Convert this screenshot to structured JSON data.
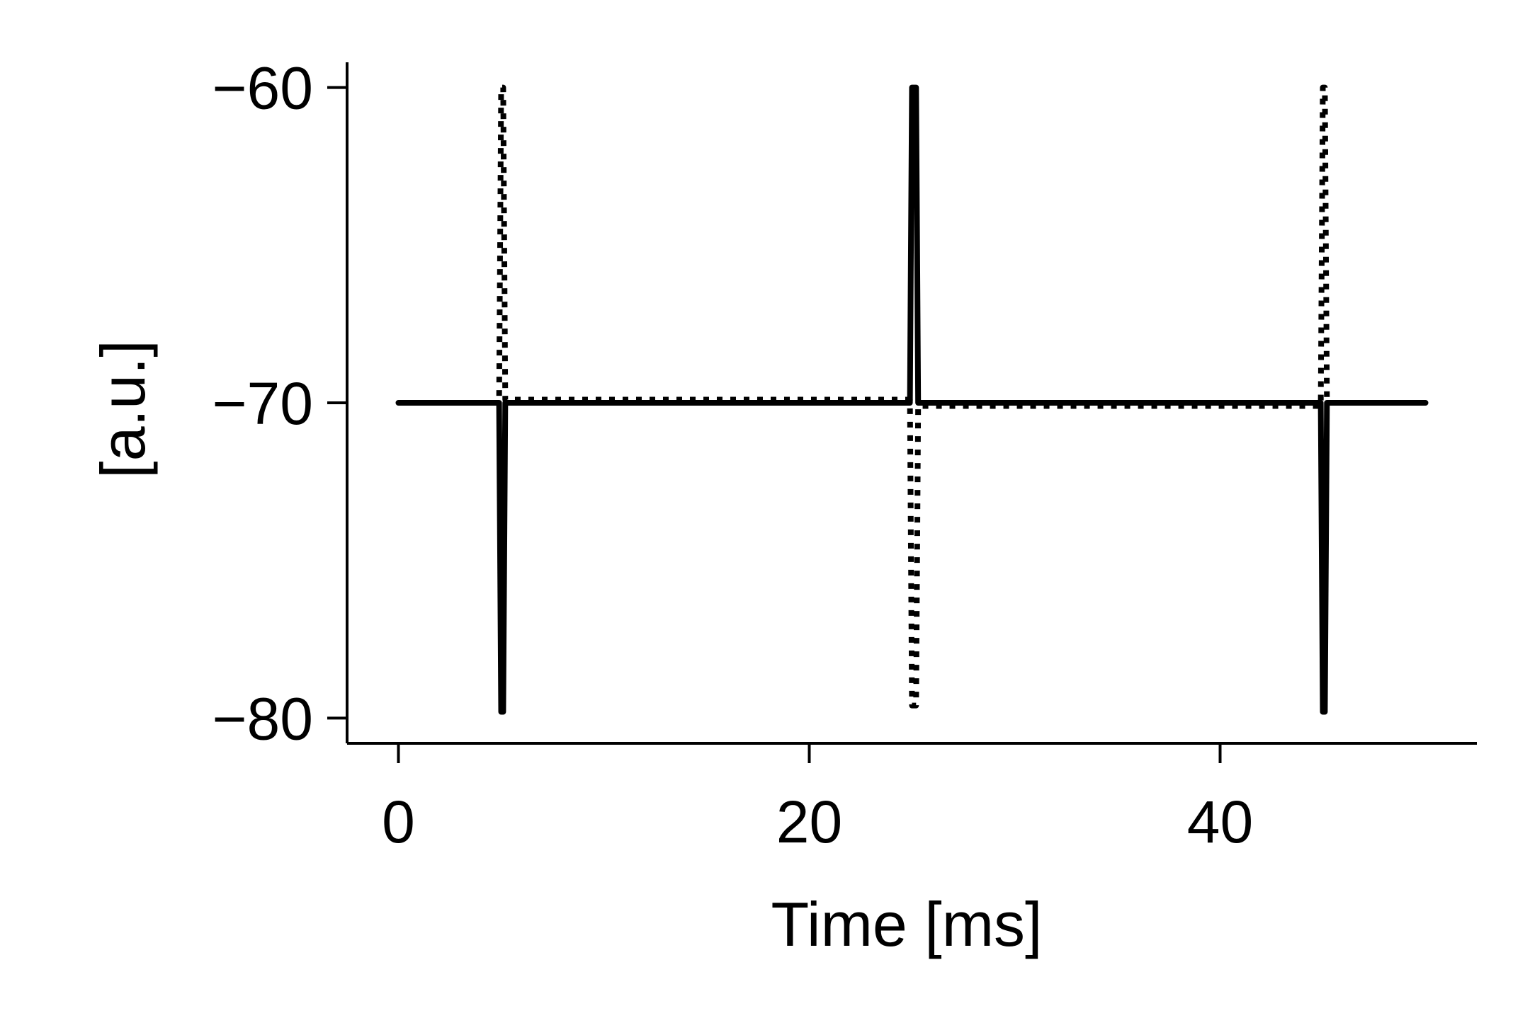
{
  "chart_data": {
    "type": "line",
    "title": "",
    "xlabel": "Time [ms]",
    "ylabel": "[a.u.]",
    "xlim": [
      -2.5,
      52.5
    ],
    "ylim": [
      -80.8,
      -59.2
    ],
    "xticks": [
      0,
      20,
      40
    ],
    "xtick_labels": [
      "0",
      "20",
      "40"
    ],
    "yticks": [
      -60,
      -70,
      -80
    ],
    "ytick_labels": [
      "−60",
      "−70",
      "−80"
    ],
    "grid": false,
    "legend": "none",
    "series": [
      {
        "style": "solid",
        "color": "#000000",
        "x": [
          0,
          4.9,
          5.0,
          5.1,
          5.2,
          24.9,
          25.0,
          25.2,
          25.3,
          44.9,
          45.0,
          45.1,
          45.2,
          50
        ],
        "y": [
          -70.0,
          -70.0,
          -79.8,
          -79.8,
          -70.0,
          -70.0,
          -60.0,
          -60.0,
          -70.0,
          -70.0,
          -79.8,
          -79.8,
          -70.0,
          -70.0
        ]
      },
      {
        "style": "dotted",
        "color": "#000000",
        "x": [
          0,
          4.9,
          5.0,
          5.1,
          5.2,
          24.9,
          25.0,
          25.2,
          25.3,
          44.9,
          45.0,
          45.1,
          45.2,
          50
        ],
        "y": [
          -70.0,
          -70.0,
          -60.0,
          -60.0,
          -69.9,
          -69.9,
          -79.6,
          -79.6,
          -70.1,
          -70.1,
          -60.0,
          -60.0,
          -70.0,
          -70.0
        ]
      }
    ]
  }
}
